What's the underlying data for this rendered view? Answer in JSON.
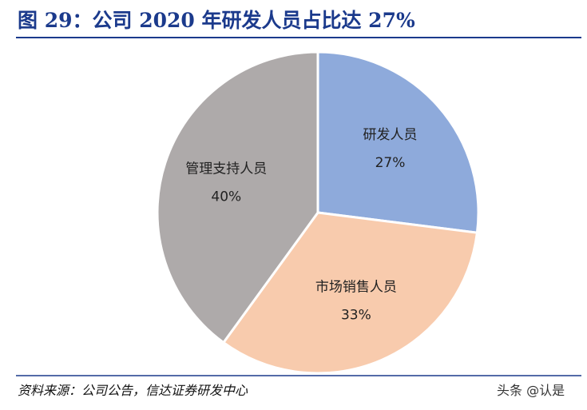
{
  "chart_data": {
    "type": "pie",
    "title": "图 29：公司 2020 年研发人员占比达 27%",
    "categories": [
      "研发人员",
      "市场销售人员",
      "管理支持人员"
    ],
    "values": [
      27,
      33,
      40
    ],
    "value_labels": [
      "27%",
      "33%",
      "40%"
    ],
    "colors": [
      "#8eaadb",
      "#f8cbad",
      "#aeaaaa"
    ]
  },
  "source": "资料来源：公司公告，信达证券研发中心",
  "watermark": "头条 @认是"
}
